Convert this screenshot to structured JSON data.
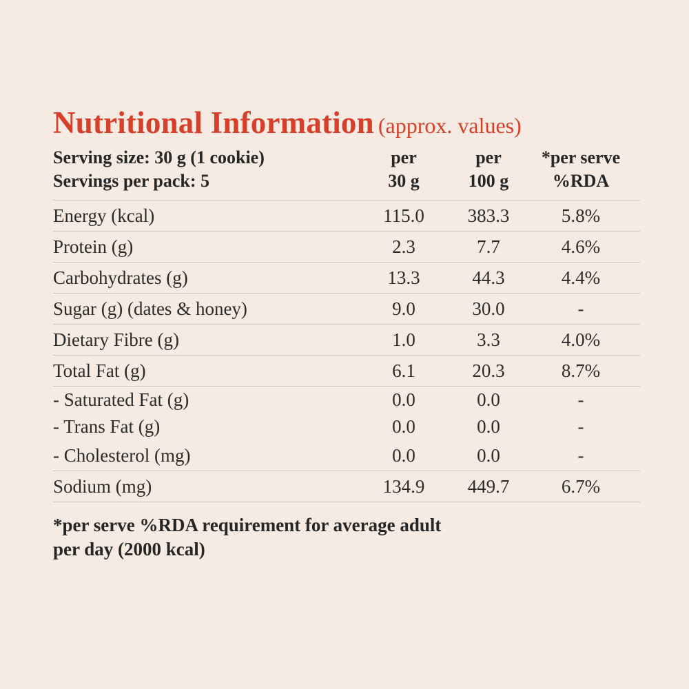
{
  "title": {
    "main": "Nutritional Information",
    "sub": "(approx. values)"
  },
  "header": {
    "serving_size": "Serving size: 30 g (1 cookie)",
    "servings_per_pack": "Servings per pack: 5",
    "col_a_line1": "per",
    "col_a_line2": "30 g",
    "col_b_line1": "per",
    "col_b_line2": "100 g",
    "col_c_line1": "*per serve",
    "col_c_line2": "%RDA"
  },
  "rows": [
    {
      "name": "Energy (kcal)",
      "per30": "115.0",
      "per100": "383.3",
      "rda": "5.8%"
    },
    {
      "name": "Protein (g)",
      "per30": "2.3",
      "per100": "7.7",
      "rda": "4.6%"
    },
    {
      "name": "Carbohydrates (g)",
      "per30": "13.3",
      "per100": "44.3",
      "rda": "4.4%"
    },
    {
      "name": "Sugar (g) (dates & honey)",
      "per30": "9.0",
      "per100": "30.0",
      "rda": "-"
    },
    {
      "name": "Dietary Fibre (g)",
      "per30": "1.0",
      "per100": "3.3",
      "rda": "4.0%"
    },
    {
      "name": "Total Fat (g)",
      "per30": "6.1",
      "per100": "20.3",
      "rda": "8.7%"
    },
    {
      "name": "- Saturated Fat (g)",
      "per30": "0.0",
      "per100": "0.0",
      "rda": "-"
    },
    {
      "name": "- Trans Fat (g)",
      "per30": "0.0",
      "per100": "0.0",
      "rda": "-"
    },
    {
      "name": "- Cholesterol (mg)",
      "per30": "0.0",
      "per100": "0.0",
      "rda": "-"
    },
    {
      "name": "Sodium (mg)",
      "per30": "134.9",
      "per100": "449.7",
      "rda": "6.7%"
    }
  ],
  "footnote": {
    "line1": "*per serve %RDA requirement for average adult",
    "line2": "per day (2000 kcal)"
  },
  "colors": {
    "background": "#f5ebe2",
    "title": "#d6402a",
    "text": "#2b2b2b",
    "rule": "#c8c0b8"
  }
}
